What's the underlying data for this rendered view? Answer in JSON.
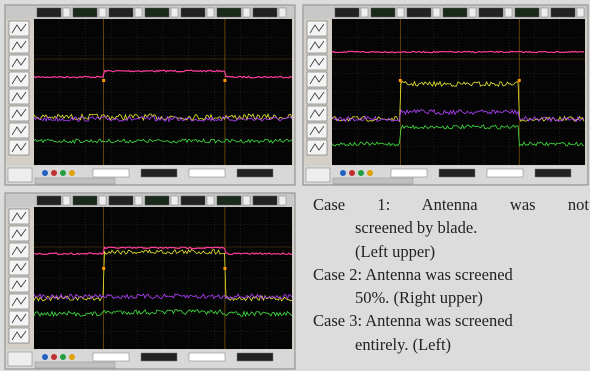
{
  "cases": [
    {
      "lines": [
        "Case 1: Antenna was not",
        "screened by blade.",
        "(Left upper)"
      ]
    },
    {
      "lines": [
        "Case 2: Antenna was screened",
        "50%. (Right upper)"
      ]
    },
    {
      "lines": [
        "Case 3: Antenna was screened",
        "entirely. (Left)"
      ]
    }
  ]
}
